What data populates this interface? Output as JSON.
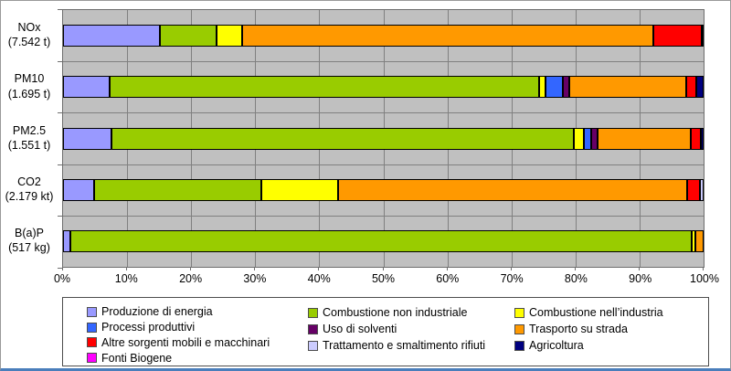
{
  "chart_data": {
    "type": "bar",
    "orientation": "horizontal",
    "stacked": true,
    "value_unit": "percent",
    "categories": [
      {
        "label": "NOx",
        "amount": "(7.542 t)"
      },
      {
        "label": "PM10",
        "amount": "(1.695 t)"
      },
      {
        "label": "PM2.5",
        "amount": "(1.551 t)"
      },
      {
        "label": "CO2",
        "amount": "(2.179 kt)"
      },
      {
        "label": "B(a)P",
        "amount": "(517 kg)"
      }
    ],
    "series": [
      {
        "name": "Produzione di energia",
        "color": "#9999FF",
        "values": [
          15.1,
          7.3,
          7.6,
          4.9,
          1.1
        ]
      },
      {
        "name": "Combustione non industriale",
        "color": "#99CC00",
        "values": [
          8.9,
          67.0,
          72.1,
          26.1,
          97.0
        ]
      },
      {
        "name": "Combustione nell’industria",
        "color": "#FFFF00",
        "values": [
          4.0,
          1.0,
          1.6,
          11.9,
          0.6
        ]
      },
      {
        "name": "Processi produttivi",
        "color": "#3366FF",
        "values": [
          0,
          2.7,
          1.1,
          0,
          0
        ]
      },
      {
        "name": "Uso di solventi",
        "color": "#660066",
        "values": [
          0,
          1.0,
          1.0,
          0,
          0
        ]
      },
      {
        "name": "Trasporto su strada",
        "color": "#FF9900",
        "values": [
          64.1,
          18.3,
          14.6,
          54.6,
          1.3
        ]
      },
      {
        "name": "Altre sorgenti mobili e macchinari",
        "color": "#FF0000",
        "values": [
          7.6,
          1.6,
          1.6,
          2.0,
          0
        ]
      },
      {
        "name": "Trattamento e smaltimento rifiuti",
        "color": "#CCCCFF",
        "values": [
          0.3,
          0,
          0,
          0.5,
          0
        ]
      },
      {
        "name": "Agricoltura",
        "color": "#000080",
        "values": [
          0,
          1.1,
          0.4,
          0,
          0
        ]
      },
      {
        "name": "Fonti Biogene",
        "color": "#FF00FF",
        "values": [
          0,
          0,
          0,
          0,
          0
        ]
      }
    ],
    "x_axis": {
      "ticks": [
        "0%",
        "10%",
        "20%",
        "30%",
        "40%",
        "50%",
        "60%",
        "70%",
        "80%",
        "90%",
        "100%"
      ],
      "min": 0,
      "max": 100,
      "grid_interval": 10
    },
    "plot_background": "#C0C0C0",
    "grid_color": "#808080",
    "legend_position": "bottom"
  },
  "legend": {
    "columns": [
      [
        0,
        3,
        6,
        9
      ],
      [
        1,
        4,
        7
      ],
      [
        2,
        5,
        8
      ]
    ]
  }
}
